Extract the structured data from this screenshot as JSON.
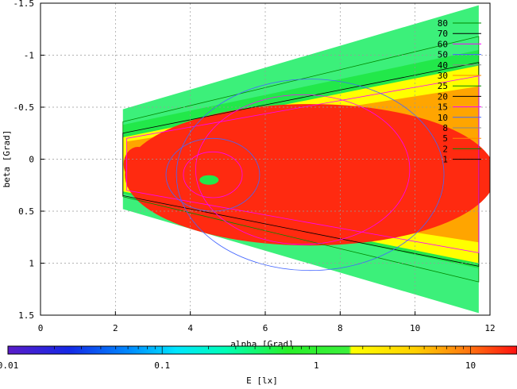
{
  "chart_data": {
    "type": "heatmap",
    "xlabel": "alpha [Grad]",
    "ylabel": "beta [Grad]",
    "colorbar_label": "E [lx]",
    "xlim": [
      0,
      12
    ],
    "ylim": [
      -1.5,
      1.5
    ],
    "y_axis_inverted": true,
    "x_ticks": [
      0,
      2,
      4,
      6,
      8,
      10,
      12
    ],
    "y_ticks": [
      -1.5,
      -1,
      -0.5,
      0,
      0.5,
      1,
      1.5
    ],
    "y_tick_labels": [
      "-1.5",
      "-1",
      "-0.5",
      "0",
      "0.5",
      "1",
      "1.5"
    ],
    "grid": true,
    "colorbar": {
      "scale": "log",
      "range": [
        0.01,
        20
      ],
      "ticks": [
        0.01,
        0.1,
        1,
        10
      ],
      "tick_labels": [
        "0.01",
        "0.1",
        "1",
        "10"
      ]
    },
    "contour_levels": [
      "80",
      "70",
      "60",
      "50",
      "40",
      "30",
      "25",
      "20",
      "15",
      "10",
      "8",
      "5",
      "2",
      "1"
    ],
    "contour_legend_placement": "top-right",
    "peak": {
      "x": 4.5,
      "y": 0.2
    }
  },
  "colors": {
    "low_green": "#3cf07a",
    "green": "#22e84a",
    "yellow": "#ffff00",
    "orange": "#ffa500",
    "red": "#ff2a10"
  }
}
